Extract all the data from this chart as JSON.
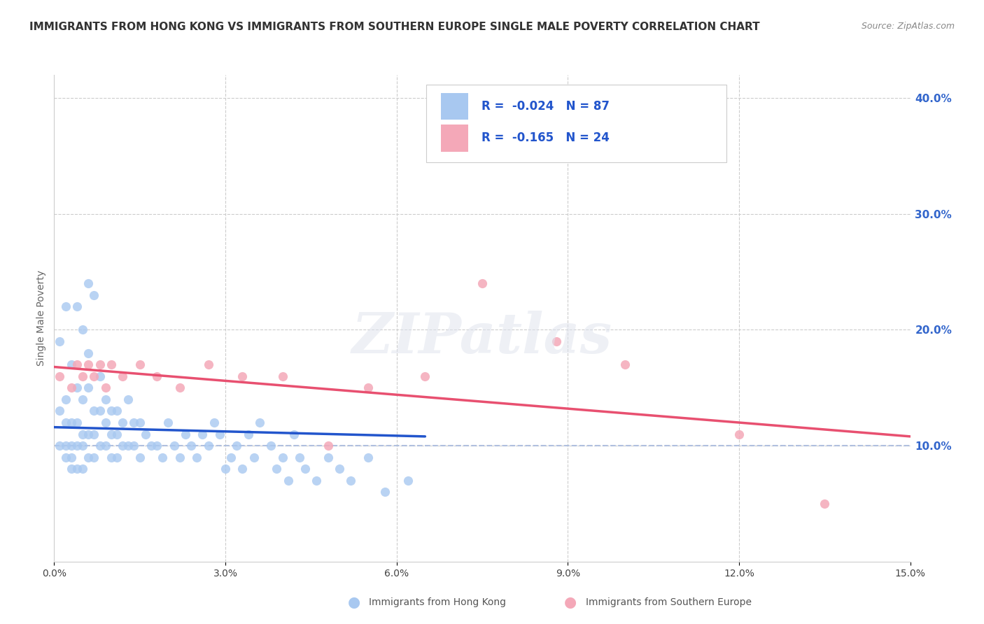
{
  "title": "IMMIGRANTS FROM HONG KONG VS IMMIGRANTS FROM SOUTHERN EUROPE SINGLE MALE POVERTY CORRELATION CHART",
  "source": "Source: ZipAtlas.com",
  "ylabel": "Single Male Poverty",
  "legend_label1": "Immigrants from Hong Kong",
  "legend_label2": "Immigrants from Southern Europe",
  "r1": -0.024,
  "n1": 87,
  "r2": -0.165,
  "n2": 24,
  "color1": "#a8c8f0",
  "color2": "#f4a8b8",
  "line_color1": "#2255cc",
  "line_color2": "#e85070",
  "xlim": [
    0,
    0.15
  ],
  "ylim": [
    0,
    0.42
  ],
  "x_ticks": [
    0.0,
    0.03,
    0.06,
    0.09,
    0.12,
    0.15
  ],
  "x_tick_labels": [
    "0.0%",
    "3.0%",
    "6.0%",
    "9.0%",
    "12.0%",
    "15.0%"
  ],
  "y_ticks_right": [
    0.1,
    0.2,
    0.3,
    0.4
  ],
  "y_tick_labels_right": [
    "10.0%",
    "20.0%",
    "30.0%",
    "40.0%"
  ],
  "hk_x": [
    0.001,
    0.001,
    0.002,
    0.002,
    0.002,
    0.002,
    0.003,
    0.003,
    0.003,
    0.003,
    0.004,
    0.004,
    0.004,
    0.004,
    0.005,
    0.005,
    0.005,
    0.005,
    0.006,
    0.006,
    0.006,
    0.006,
    0.007,
    0.007,
    0.007,
    0.008,
    0.008,
    0.008,
    0.009,
    0.009,
    0.009,
    0.01,
    0.01,
    0.01,
    0.011,
    0.011,
    0.011,
    0.012,
    0.012,
    0.013,
    0.013,
    0.014,
    0.014,
    0.015,
    0.015,
    0.016,
    0.017,
    0.018,
    0.019,
    0.02,
    0.021,
    0.022,
    0.023,
    0.024,
    0.025,
    0.026,
    0.027,
    0.028,
    0.029,
    0.03,
    0.031,
    0.032,
    0.033,
    0.034,
    0.035,
    0.036,
    0.038,
    0.039,
    0.04,
    0.041,
    0.042,
    0.043,
    0.044,
    0.046,
    0.048,
    0.05,
    0.052,
    0.055,
    0.058,
    0.062,
    0.001,
    0.002,
    0.003,
    0.004,
    0.005,
    0.006,
    0.007
  ],
  "hk_y": [
    0.13,
    0.1,
    0.14,
    0.12,
    0.1,
    0.09,
    0.12,
    0.1,
    0.09,
    0.08,
    0.15,
    0.12,
    0.1,
    0.08,
    0.14,
    0.11,
    0.1,
    0.08,
    0.18,
    0.15,
    0.11,
    0.09,
    0.13,
    0.11,
    0.09,
    0.16,
    0.13,
    0.1,
    0.14,
    0.12,
    0.1,
    0.13,
    0.11,
    0.09,
    0.13,
    0.11,
    0.09,
    0.12,
    0.1,
    0.14,
    0.1,
    0.12,
    0.1,
    0.12,
    0.09,
    0.11,
    0.1,
    0.1,
    0.09,
    0.12,
    0.1,
    0.09,
    0.11,
    0.1,
    0.09,
    0.11,
    0.1,
    0.12,
    0.11,
    0.08,
    0.09,
    0.1,
    0.08,
    0.11,
    0.09,
    0.12,
    0.1,
    0.08,
    0.09,
    0.07,
    0.11,
    0.09,
    0.08,
    0.07,
    0.09,
    0.08,
    0.07,
    0.09,
    0.06,
    0.07,
    0.19,
    0.22,
    0.17,
    0.22,
    0.2,
    0.24,
    0.23
  ],
  "se_x": [
    0.001,
    0.003,
    0.004,
    0.005,
    0.006,
    0.007,
    0.008,
    0.009,
    0.01,
    0.012,
    0.015,
    0.018,
    0.022,
    0.027,
    0.033,
    0.04,
    0.048,
    0.055,
    0.065,
    0.075,
    0.088,
    0.1,
    0.12,
    0.135
  ],
  "se_y": [
    0.16,
    0.15,
    0.17,
    0.16,
    0.17,
    0.16,
    0.17,
    0.15,
    0.17,
    0.16,
    0.17,
    0.16,
    0.15,
    0.17,
    0.16,
    0.16,
    0.1,
    0.15,
    0.16,
    0.24,
    0.19,
    0.17,
    0.11,
    0.05
  ],
  "background": "#ffffff",
  "grid_color": "#cccccc",
  "watermark": "ZIPatlas",
  "dashed_line_y": 0.1,
  "title_fontsize": 11,
  "axis_fontsize": 10,
  "hk_trend_x": [
    0.0,
    0.065
  ],
  "hk_trend_y": [
    0.116,
    0.108
  ],
  "se_trend_x": [
    0.0,
    0.15
  ],
  "se_trend_y": [
    0.168,
    0.108
  ]
}
